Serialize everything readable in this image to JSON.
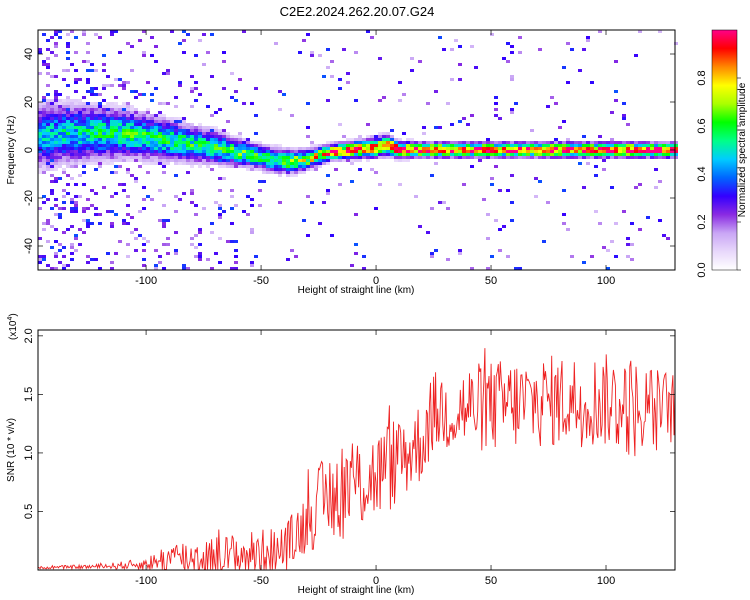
{
  "title": "C2E2.2024.262.20.07.G24",
  "chart_data": [
    {
      "type": "heatmap",
      "xlabel": "Height of straight line (km)",
      "ylabel": "Frequency (Hz)",
      "xlim": [
        -147,
        130
      ],
      "ylim": [
        -50,
        50
      ],
      "xticks": [
        -100,
        -50,
        0,
        50,
        100
      ],
      "yticks": [
        -40,
        -20,
        0,
        20,
        40
      ],
      "colorbar": {
        "label": "Normalized spectral amplitude",
        "range": [
          0,
          1
        ],
        "ticks": [
          0.0,
          0.2,
          0.4,
          0.6,
          0.8
        ],
        "colors": [
          "#ffffff",
          "#e8d8fb",
          "#c9a6f5",
          "#8a2be2",
          "#3300ff",
          "#0066ff",
          "#00ccff",
          "#00ff88",
          "#00ff00",
          "#aaff00",
          "#ffff00",
          "#ff8800",
          "#ff0000",
          "#ff0088"
        ]
      },
      "ridge": {
        "x": [
          -147,
          -130,
          -110,
          -90,
          -70,
          -55,
          -45,
          -38,
          -30,
          -20,
          -10,
          0,
          5,
          10,
          20,
          40,
          60,
          80,
          100,
          130
        ],
        "freq": [
          6,
          7,
          7,
          4,
          1,
          -2,
          -4,
          -5,
          -4,
          -1,
          0,
          1,
          2,
          0,
          0,
          0,
          0,
          0,
          0,
          0
        ],
        "amplitude": [
          0.45,
          0.5,
          0.55,
          0.55,
          0.55,
          0.6,
          0.62,
          0.65,
          0.7,
          0.85,
          0.9,
          0.85,
          0.85,
          0.92,
          0.95,
          0.95,
          0.95,
          0.95,
          0.95,
          0.95
        ],
        "spread": [
          8,
          7,
          6,
          5,
          4,
          3,
          3,
          3,
          2.5,
          2,
          2,
          2.5,
          2.5,
          2,
          1.8,
          1.8,
          1.8,
          1.8,
          1.8,
          1.8
        ]
      }
    },
    {
      "type": "line",
      "xlabel": "Height of straight line (km)",
      "ylabel": "SNR (10 * v/v)",
      "multiplier_label": "(x10",
      "multiplier_exp": "4",
      "xlim": [
        -147,
        130
      ],
      "ylim": [
        0,
        2.05
      ],
      "xticks": [
        -100,
        -50,
        0,
        50,
        100
      ],
      "yticks": [
        0.5,
        1.0,
        1.5,
        2.0
      ],
      "ytick_labels": [
        "0.5",
        "1.0",
        "1.5",
        "2.0"
      ],
      "color": "#ee2222",
      "envelope": {
        "x": [
          -147,
          -120,
          -100,
          -90,
          -60,
          -40,
          -33,
          -25,
          -15,
          0,
          10,
          20,
          25,
          50,
          80,
          100,
          110,
          120,
          130
        ],
        "base": [
          0.02,
          0.03,
          0.05,
          0.1,
          0.12,
          0.18,
          0.35,
          0.55,
          0.7,
          0.8,
          0.95,
          1.1,
          1.35,
          1.4,
          1.45,
          1.45,
          1.4,
          1.35,
          1.4
        ],
        "noise": [
          0.01,
          0.02,
          0.05,
          0.15,
          0.2,
          0.2,
          0.25,
          0.35,
          0.45,
          0.4,
          0.4,
          0.35,
          0.35,
          0.4,
          0.4,
          0.4,
          0.45,
          0.4,
          0.3
        ]
      }
    }
  ]
}
